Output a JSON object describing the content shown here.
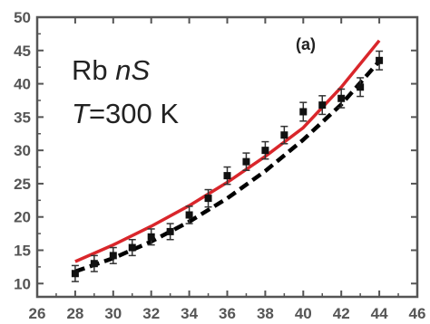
{
  "chart_data": {
    "type": "line",
    "title": "",
    "xlabel": "",
    "ylabel": "",
    "xlim": [
      26,
      46
    ],
    "ylim": [
      8,
      50
    ],
    "x_ticks": [
      26,
      28,
      30,
      32,
      34,
      36,
      38,
      40,
      42,
      44,
      46
    ],
    "y_ticks": [
      10,
      15,
      20,
      25,
      30,
      35,
      40,
      45,
      50
    ],
    "grid": false,
    "legend": "none",
    "panel_label": "(a)",
    "annotation_line1": {
      "species": "Rb",
      "state": "nS"
    },
    "annotation_line2": {
      "symbol": "T",
      "value": "=300 K"
    },
    "colors": {
      "red_curve": "#d9262b",
      "black_dashed": "#000000",
      "markers": "#111111",
      "axis": "#555555"
    },
    "series": [
      {
        "style": "solid-red-line",
        "x": [
          28,
          30,
          32,
          34,
          36,
          38,
          40,
          42,
          44
        ],
        "y": [
          13.3,
          15.8,
          18.6,
          21.7,
          25.2,
          29.1,
          33.4,
          39.5,
          46.5
        ]
      },
      {
        "style": "black-dashed-line",
        "x": [
          28,
          30,
          32,
          34,
          36,
          38,
          40,
          42,
          44
        ],
        "y": [
          11.8,
          13.8,
          16.3,
          19.3,
          22.8,
          26.9,
          31.6,
          36.9,
          43.4
        ]
      },
      {
        "style": "black-square-markers-with-errorbars",
        "x": [
          28,
          29,
          30,
          31,
          32,
          33,
          34,
          35,
          36,
          37,
          38,
          39,
          40,
          41,
          42,
          43,
          44
        ],
        "y": [
          11.5,
          13.0,
          14.2,
          15.4,
          17.0,
          17.8,
          20.3,
          22.8,
          26.2,
          28.3,
          30.0,
          32.3,
          35.8,
          36.8,
          37.8,
          39.5,
          43.5
        ],
        "err": [
          1.2,
          1.2,
          1.2,
          1.2,
          1.2,
          1.2,
          1.3,
          1.3,
          1.3,
          1.3,
          1.3,
          1.3,
          1.4,
          1.4,
          1.4,
          1.4,
          1.4
        ]
      }
    ]
  }
}
